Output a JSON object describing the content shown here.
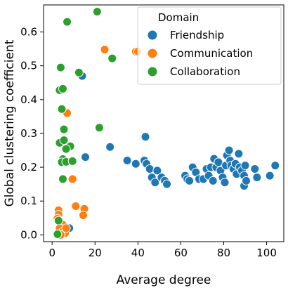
{
  "chart_data": {
    "type": "scatter",
    "title": "",
    "xlabel": "Average degree",
    "ylabel": "Global clustering coefficient",
    "xlim": [
      -4,
      108
    ],
    "ylim": [
      -0.02,
      0.68
    ],
    "xticks": [
      0,
      20,
      40,
      60,
      80,
      100
    ],
    "yticks": [
      0.0,
      0.1,
      0.2,
      0.3,
      0.4,
      0.5,
      0.6
    ],
    "xtick_labels": [
      "0",
      "20",
      "40",
      "60",
      "80",
      "100"
    ],
    "ytick_labels": [
      "0.0",
      "0.1",
      "0.2",
      "0.3",
      "0.4",
      "0.5",
      "0.6"
    ],
    "grid": false,
    "legend": {
      "title": "Domain",
      "placement": "top-right"
    },
    "series": [
      {
        "name": "Friendship",
        "color": "#1f77b4",
        "points": [
          [
            14,
            0.47
          ],
          [
            15.5,
            0.23
          ],
          [
            8,
            0.02
          ],
          [
            27,
            0.26
          ],
          [
            35,
            0.22
          ],
          [
            39,
            0.21
          ],
          [
            43.5,
            0.29
          ],
          [
            43,
            0.22
          ],
          [
            44,
            0.21
          ],
          [
            45.5,
            0.195
          ],
          [
            46.5,
            0.17
          ],
          [
            48,
            0.155
          ],
          [
            49,
            0.19
          ],
          [
            51,
            0.17
          ],
          [
            52.5,
            0.16
          ],
          [
            53.5,
            0.15
          ],
          [
            62,
            0.175
          ],
          [
            63,
            0.165
          ],
          [
            64,
            0.16
          ],
          [
            65.5,
            0.2
          ],
          [
            67,
            0.185
          ],
          [
            68.5,
            0.165
          ],
          [
            70.5,
            0.165
          ],
          [
            72,
            0.195
          ],
          [
            73,
            0.175
          ],
          [
            74,
            0.2
          ],
          [
            75,
            0.16
          ],
          [
            75.5,
            0.225
          ],
          [
            76.5,
            0.2
          ],
          [
            77.5,
            0.215
          ],
          [
            78.5,
            0.19
          ],
          [
            79.5,
            0.17
          ],
          [
            80.5,
            0.155
          ],
          [
            81,
            0.205
          ],
          [
            81.5,
            0.235
          ],
          [
            82.5,
            0.25
          ],
          [
            83,
            0.22
          ],
          [
            83.5,
            0.205
          ],
          [
            84.5,
            0.195
          ],
          [
            85.5,
            0.21
          ],
          [
            86,
            0.18
          ],
          [
            87,
            0.24
          ],
          [
            87.5,
            0.2
          ],
          [
            88.5,
            0.19
          ],
          [
            89.5,
            0.175
          ],
          [
            89.5,
            0.145
          ],
          [
            90,
            0.205
          ],
          [
            90.5,
            0.16
          ],
          [
            94.5,
            0.195
          ],
          [
            95.5,
            0.17
          ],
          [
            101.5,
            0.175
          ],
          [
            104,
            0.205
          ]
        ]
      },
      {
        "name": "Communication",
        "color": "#ff7f0e",
        "points": [
          [
            24.5,
            0.548
          ],
          [
            39,
            0.542
          ],
          [
            40,
            0.542
          ],
          [
            7,
            0.36
          ],
          [
            8.5,
            0.262
          ],
          [
            9.5,
            0.165
          ],
          [
            3,
            0.073
          ],
          [
            3,
            0.06
          ],
          [
            2.5,
            0.048
          ],
          [
            5,
            0.03
          ],
          [
            3.5,
            0.02
          ],
          [
            5,
            0.01
          ],
          [
            6,
            0.005
          ],
          [
            4,
            0.0
          ],
          [
            6.5,
            0.02
          ],
          [
            11,
            0.085
          ],
          [
            15,
            0.077
          ],
          [
            14.5,
            0.058
          ]
        ]
      },
      {
        "name": "Collaboration",
        "color": "#2ca02c",
        "points": [
          [
            7,
            0.63
          ],
          [
            21,
            0.66
          ],
          [
            28,
            0.522
          ],
          [
            4,
            0.495
          ],
          [
            12.5,
            0.48
          ],
          [
            3.5,
            0.428
          ],
          [
            5,
            0.432
          ],
          [
            4.5,
            0.372
          ],
          [
            5.5,
            0.312
          ],
          [
            3.5,
            0.272
          ],
          [
            5.5,
            0.28
          ],
          [
            8.5,
            0.262
          ],
          [
            6.5,
            0.254
          ],
          [
            5,
            0.224
          ],
          [
            4.5,
            0.215
          ],
          [
            6.5,
            0.216
          ],
          [
            9.5,
            0.218
          ],
          [
            5,
            0.165
          ],
          [
            22,
            0.317
          ],
          [
            3,
            0.042
          ],
          [
            2.5,
            0.002
          ]
        ]
      }
    ]
  }
}
